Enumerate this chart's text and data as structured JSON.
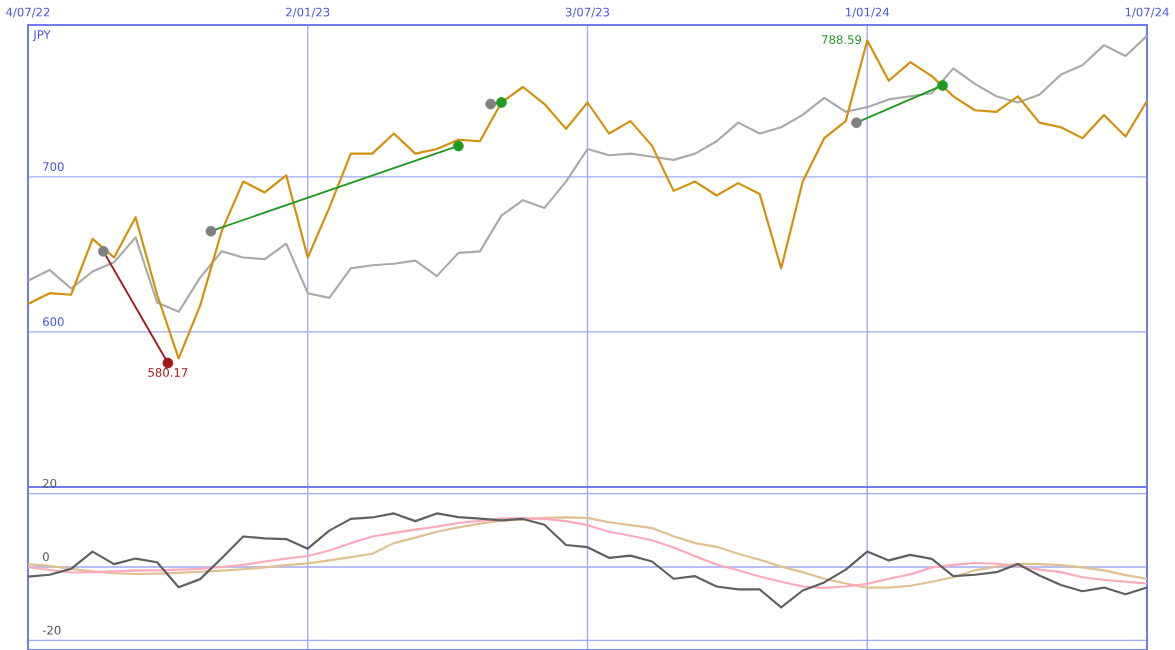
{
  "chart_data": [
    {
      "type": "line",
      "ylabel": "JPY",
      "x": [
        "2022-07-04",
        "2022-07-18",
        "2022-08-01",
        "2022-08-15",
        "2022-08-29",
        "2022-09-12",
        "2022-09-26",
        "2022-10-10",
        "2022-10-24",
        "2022-11-07",
        "2022-11-21",
        "2022-12-05",
        "2022-12-19",
        "2023-01-02",
        "2023-01-16",
        "2023-01-30",
        "2023-02-13",
        "2023-02-27",
        "2023-03-13",
        "2023-03-27",
        "2023-04-10",
        "2023-04-24",
        "2023-05-08",
        "2023-05-22",
        "2023-06-05",
        "2023-06-19",
        "2023-07-03",
        "2023-07-17",
        "2023-07-31",
        "2023-08-14",
        "2023-08-28",
        "2023-09-11",
        "2023-09-25",
        "2023-10-09",
        "2023-10-23",
        "2023-11-06",
        "2023-11-20",
        "2023-12-04",
        "2023-12-18",
        "2024-01-01",
        "2024-01-15",
        "2024-01-29",
        "2024-02-12",
        "2024-02-26",
        "2024-03-11",
        "2024-03-25",
        "2024-04-08",
        "2024-04-22",
        "2024-05-06",
        "2024-05-20",
        "2024-06-03",
        "2024-06-17",
        "2024-07-01"
      ],
      "series": [
        {
          "color": "#aaaaaa",
          "values": [
            633,
            640,
            628,
            639,
            645,
            661,
            619,
            613,
            635,
            652,
            648,
            647,
            657,
            625,
            622,
            641,
            643,
            644,
            646,
            636,
            651,
            652,
            675,
            685,
            680,
            697,
            718,
            714,
            715,
            713,
            711,
            715,
            723,
            735,
            728,
            732,
            740,
            751,
            742,
            745,
            750,
            752,
            754,
            770,
            760,
            752,
            748,
            753,
            766,
            772,
            785,
            778,
            791
          ]
        },
        {
          "color": "#d4900a",
          "values": [
            618,
            625,
            624,
            660,
            648,
            674,
            624,
            583,
            617,
            665,
            697,
            690,
            701,
            648,
            680,
            715,
            715,
            728,
            715,
            718,
            724,
            723,
            748,
            758,
            747,
            731,
            748,
            728,
            736,
            720,
            691,
            697,
            688,
            696,
            689,
            641,
            697,
            725,
            736,
            788,
            762,
            774,
            765,
            752,
            743,
            742,
            752,
            735,
            732,
            725,
            740,
            726,
            749
          ]
        },
        {
          "color": "#a01818",
          "marker": "circle",
          "x": [
            "2022-08-22",
            "2022-10-03"
          ],
          "values": [
            652,
            580
          ],
          "colors": [
            "#808080",
            "#a01818"
          ]
        },
        {
          "color": "#229922",
          "marker": "circle",
          "x": [
            "2022-10-31",
            "2023-04-10"
          ],
          "values": [
            665,
            720
          ],
          "colors": [
            "#808080",
            "#229922"
          ]
        },
        {
          "color": "#229922",
          "marker": "circle",
          "x": [
            "2023-05-01",
            "2023-05-08"
          ],
          "values": [
            747,
            748
          ],
          "colors": [
            "#808080",
            "#229922"
          ]
        },
        {
          "color": "#229922",
          "marker": "circle",
          "x": [
            "2023-12-25",
            "2024-02-19"
          ],
          "values": [
            735,
            759
          ],
          "colors": [
            "#808080",
            "#229922"
          ]
        }
      ],
      "annotations": [
        {
          "text": "788.59",
          "x": "2024-01-01",
          "y": 788.59
        },
        {
          "text": "580.17",
          "x": "2022-10-03",
          "y": 580.17
        }
      ],
      "xlim": [
        "2022-07-04",
        "2024-07-01"
      ],
      "ylim": [
        500,
        798
      ],
      "yticks": [
        600,
        700
      ],
      "xticks": [
        {
          "value": "2022-07-04",
          "label": "4/07/22"
        },
        {
          "value": "2023-01-02",
          "label": "2/01/23"
        },
        {
          "value": "2023-07-03",
          "label": "3/07/23"
        },
        {
          "value": "2024-01-01",
          "label": "1/01/24"
        },
        {
          "value": "2024-07-01",
          "label": "1/07/24"
        }
      ],
      "grid": true
    },
    {
      "type": "line",
      "x": [
        "2022-07-04",
        "2022-07-18",
        "2022-08-01",
        "2022-08-15",
        "2022-08-29",
        "2022-09-12",
        "2022-09-26",
        "2022-10-10",
        "2022-10-24",
        "2022-11-07",
        "2022-11-21",
        "2022-12-05",
        "2022-12-19",
        "2023-01-02",
        "2023-01-16",
        "2023-01-30",
        "2023-02-13",
        "2023-02-27",
        "2023-03-13",
        "2023-03-27",
        "2023-04-10",
        "2023-04-24",
        "2023-05-08",
        "2023-05-22",
        "2023-06-05",
        "2023-06-19",
        "2023-07-03",
        "2023-07-17",
        "2023-07-31",
        "2023-08-14",
        "2023-08-28",
        "2023-09-11",
        "2023-09-25",
        "2023-10-09",
        "2023-10-23",
        "2023-11-06",
        "2023-11-20",
        "2023-12-04",
        "2023-12-18",
        "2024-01-01",
        "2024-01-15",
        "2024-01-29",
        "2024-02-12",
        "2024-02-26",
        "2024-03-11",
        "2024-03-25",
        "2024-04-08",
        "2024-04-22",
        "2024-05-06",
        "2024-05-20",
        "2024-06-03",
        "2024-06-17",
        "2024-07-01"
      ],
      "series": [
        {
          "color": "#e0c090",
          "values": [
            0.8,
            0.3,
            -0.5,
            -1.2,
            -1.7,
            -1.9,
            -1.8,
            -1.6,
            -1.3,
            -1.0,
            -0.6,
            -0.1,
            0.5,
            1.0,
            1.8,
            2.7,
            3.6,
            6.5,
            8.0,
            9.6,
            10.8,
            11.8,
            12.6,
            13.0,
            13.4,
            13.5,
            13.4,
            12.2,
            11.4,
            10.6,
            8.4,
            6.5,
            5.5,
            3.6,
            2.0,
            0.1,
            -1.4,
            -3.2,
            -4.5,
            -5.6,
            -5.6,
            -5.1,
            -4.0,
            -2.8,
            -0.9,
            0.1,
            0.9,
            0.8,
            0.5,
            -0.1,
            -0.9,
            -2.2,
            -3.2
          ]
        },
        {
          "color": "#ffaabb",
          "values": [
            0,
            -0.8,
            -1.5,
            -1.4,
            -1.2,
            -1.0,
            -0.9,
            -0.7,
            -0.5,
            0,
            0.6,
            1.5,
            2.3,
            3.0,
            4.5,
            6.5,
            8.3,
            9.3,
            10.2,
            11.0,
            12.0,
            12.6,
            13.2,
            13.3,
            13.1,
            12.5,
            11.4,
            9.6,
            8.5,
            7.3,
            5.3,
            2.9,
            0.7,
            -0.9,
            -2.6,
            -4.0,
            -5.3,
            -5.7,
            -5.3,
            -4.6,
            -3.2,
            -2.0,
            -0.1,
            0.6,
            1.1,
            0.9,
            0.3,
            -0.7,
            -1.4,
            -2.8,
            -3.5,
            -4.0,
            -4.5
          ]
        },
        {
          "color": "#606060",
          "values": [
            -2.6,
            -2.1,
            -0.5,
            4.2,
            0.8,
            2.3,
            1.3,
            -5.5,
            -3.3,
            2.4,
            8.3,
            7.8,
            7.6,
            5.0,
            9.9,
            13.1,
            13.5,
            14.6,
            12.5,
            14.6,
            13.6,
            13.2,
            12.7,
            13.1,
            11.5,
            6.0,
            5.4,
            2.5,
            3.1,
            1.5,
            -3.2,
            -2.5,
            -5.3,
            -6.1,
            -6.1,
            -11,
            -6.4,
            -4.2,
            -0.7,
            4.2,
            1.8,
            3.3,
            2.2,
            -2.5,
            -2.1,
            -1.4,
            0.8,
            -2.3,
            -4.9,
            -6.6,
            -5.6,
            -7.4,
            -5.6
          ]
        }
      ],
      "xlim": [
        "2022-07-04",
        "2024-07-01"
      ],
      "ylim": [
        -22.6,
        21.8
      ],
      "yticks": [
        -20,
        0,
        20
      ],
      "xticks": [
        {
          "value": "2022-07-04",
          "label": null
        },
        {
          "value": "2023-01-02",
          "label": null
        },
        {
          "value": "2023-07-03",
          "label": null
        },
        {
          "value": "2024-01-01",
          "label": null
        },
        {
          "value": "2024-07-01",
          "label": null
        }
      ],
      "tick_labels": "y",
      "grid": true
    }
  ]
}
